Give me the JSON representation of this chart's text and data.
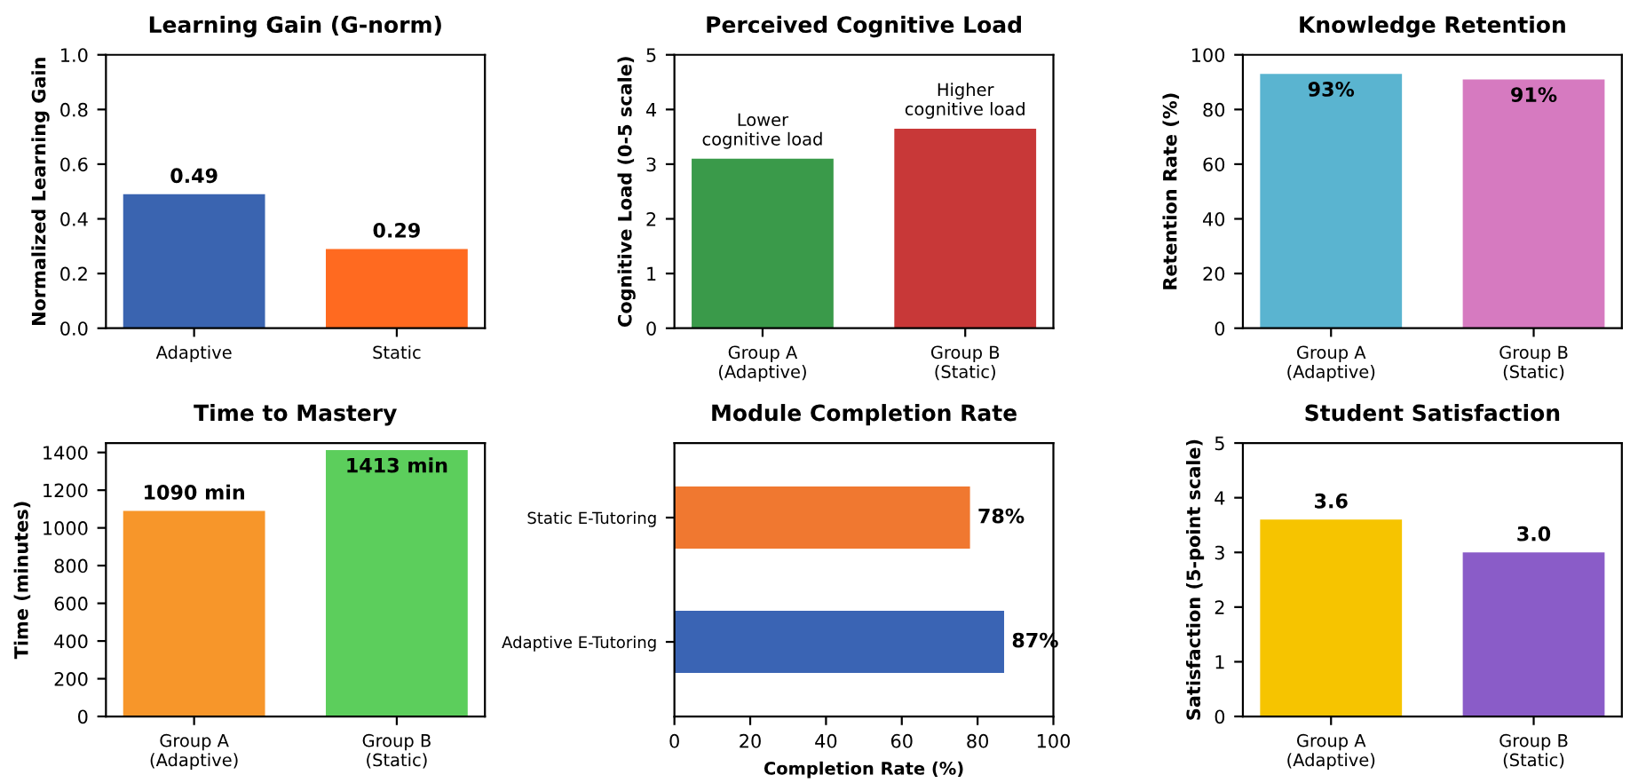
{
  "chart_data": [
    {
      "type": "bar",
      "title": "Learning Gain (G-norm)",
      "ylabel": "Normalized Learning Gain",
      "categories": [
        "Adaptive",
        "Static"
      ],
      "values": [
        0.49,
        0.29
      ],
      "colors": [
        "#3a64b0",
        "#ff6a20"
      ],
      "value_labels": [
        "0.49",
        "0.29"
      ],
      "ylim": [
        0,
        1
      ],
      "yticks": [
        {
          "value": 0,
          "label": "0.0"
        },
        0.2,
        0.4,
        0.6,
        0.8,
        {
          "value": 1,
          "label": "1.0"
        }
      ]
    },
    {
      "type": "bar",
      "title": "Perceived Cognitive Load",
      "ylabel": "Cognitive Load (0-5 scale)",
      "categories": [
        "Group A\n(Adaptive)",
        "Group B\n(Static)"
      ],
      "values": [
        3.1,
        3.65
      ],
      "colors": [
        "#3a9a4a",
        "#c83838"
      ],
      "ylim": [
        0,
        5
      ],
      "yticks": [
        0,
        1,
        2,
        3,
        4,
        5
      ],
      "annotations": [
        {
          "text": "Lower\ncognitive load",
          "x": "Group A\n(Adaptive)",
          "y": 3.1
        },
        {
          "text": "Higher\ncognitive load",
          "x": "Group B\n(Static)",
          "y": 3.65
        }
      ]
    },
    {
      "type": "bar",
      "title": "Knowledge Retention",
      "ylabel": "Retention Rate (%)",
      "categories": [
        "Group A\n(Adaptive)",
        "Group B\n(Static)"
      ],
      "values": [
        93,
        91
      ],
      "colors": [
        "#5ab4d0",
        "#d67ac0"
      ],
      "value_labels": [
        "93%",
        "91%"
      ],
      "ylim": [
        0,
        100
      ],
      "yticks": [
        0,
        20,
        40,
        60,
        80,
        100
      ]
    },
    {
      "type": "bar",
      "title": "Time to Mastery",
      "ylabel": "Time (minutes)",
      "categories": [
        "Group A\n(Adaptive)",
        "Group B\n(Static)"
      ],
      "values": [
        1090,
        1413
      ],
      "colors": [
        "#f7962a",
        "#5cce5c"
      ],
      "value_labels": [
        "1090 min",
        "1413 min"
      ],
      "ylim": [
        0,
        1450
      ],
      "yticks": [
        0,
        200,
        400,
        600,
        800,
        1000,
        1200,
        1400
      ]
    },
    {
      "type": "bar",
      "orientation": "horizontal",
      "title": "Module Completion Rate",
      "xlabel": "Completion Rate (%)",
      "categories": [
        "Static E-Tutoring",
        "Adaptive E-Tutoring"
      ],
      "values": [
        78,
        87
      ],
      "colors": [
        "#f07830",
        "#3a64b4"
      ],
      "value_labels": [
        "78%",
        "87%"
      ],
      "xlim": [
        0,
        100
      ],
      "xticks": [
        0,
        20,
        40,
        60,
        80,
        100
      ]
    },
    {
      "type": "bar",
      "title": "Student Satisfaction",
      "ylabel": "Satisfaction (5-point scale)",
      "categories": [
        "Group A\n(Adaptive)",
        "Group B\n(Static)"
      ],
      "values": [
        3.6,
        3.0
      ],
      "colors": [
        "#f6c400",
        "#8a5cc8"
      ],
      "value_labels": [
        "3.6",
        "3.0"
      ],
      "ylim": [
        0,
        5
      ],
      "yticks": [
        0,
        1,
        2,
        3,
        4,
        5
      ]
    }
  ]
}
